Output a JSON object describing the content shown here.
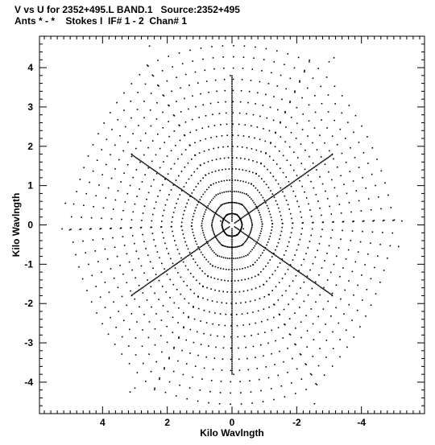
{
  "header": {
    "line1": "V vs U for 2352+495.L BAND.1   Source:2352+495",
    "line2": "Ants * - *    Stokes I  IF# 1 - 2  Chan# 1"
  },
  "chart_data": {
    "type": "scatter",
    "title": "V vs U for 2352+495.L BAND.1   Source:2352+495",
    "subtitle": "Ants * - *    Stokes I  IF# 1 - 2  Chan# 1",
    "xlabel": "Kilo Wavlngth",
    "ylabel": "Kilo Wavlngth",
    "xlim": [
      5.95,
      -5.95
    ],
    "ylim": [
      -4.8,
      4.8
    ],
    "x_reversed": true,
    "xticks": [
      4,
      2,
      0,
      -2,
      -4
    ],
    "xtick_labels": [
      "4",
      "2",
      "0",
      "-2",
      "-4"
    ],
    "yticks": [
      4,
      3,
      2,
      1,
      0,
      -1,
      -2,
      -3,
      -4
    ],
    "ytick_labels": [
      "4",
      "3",
      "2",
      "1",
      "0",
      "-1",
      "-2",
      "-3",
      "-4"
    ],
    "grid": false,
    "legend": "none",
    "colors": {
      "points": "#000000",
      "axes": "#000000",
      "background": "#ffffff"
    },
    "pattern": {
      "description_of_visible_structure": "symmetric uv-coverage: six radial arms plus curved baseline tracks",
      "arms_angles_deg": [
        90,
        270,
        30,
        210,
        150,
        330
      ],
      "arm_extents": [
        {
          "angle": 90,
          "r": 3.8
        },
        {
          "angle": 270,
          "r": 3.8
        },
        {
          "angle": 30,
          "r": 3.6
        },
        {
          "angle": 210,
          "r": 3.6
        },
        {
          "angle": 150,
          "r": 3.6
        },
        {
          "angle": 330,
          "r": 3.6
        }
      ]
    },
    "series": [
      {
        "label_sample_points": [
          [
            0.05,
            3.8
          ],
          [
            -0.05,
            -3.8
          ],
          [
            3.1,
            1.8
          ],
          [
            -3.1,
            -1.8
          ],
          [
            -3.1,
            1.8
          ],
          [
            3.1,
            -1.8
          ],
          [
            2.55,
            4.55
          ],
          [
            -2.55,
            -4.55
          ],
          [
            -3.0,
            4.15
          ],
          [
            3.0,
            -4.15
          ],
          [
            5.15,
            0.55
          ],
          [
            -5.15,
            -0.55
          ],
          [
            -5.25,
            0.1
          ],
          [
            5.25,
            -0.1
          ],
          [
            3.15,
            -4.25
          ],
          [
            -3.15,
            4.25
          ],
          [
            0.15,
            0.25
          ],
          [
            -0.15,
            -0.25
          ],
          [
            0.35,
            0.1
          ],
          [
            -0.35,
            -0.1
          ]
        ]
      }
    ]
  }
}
